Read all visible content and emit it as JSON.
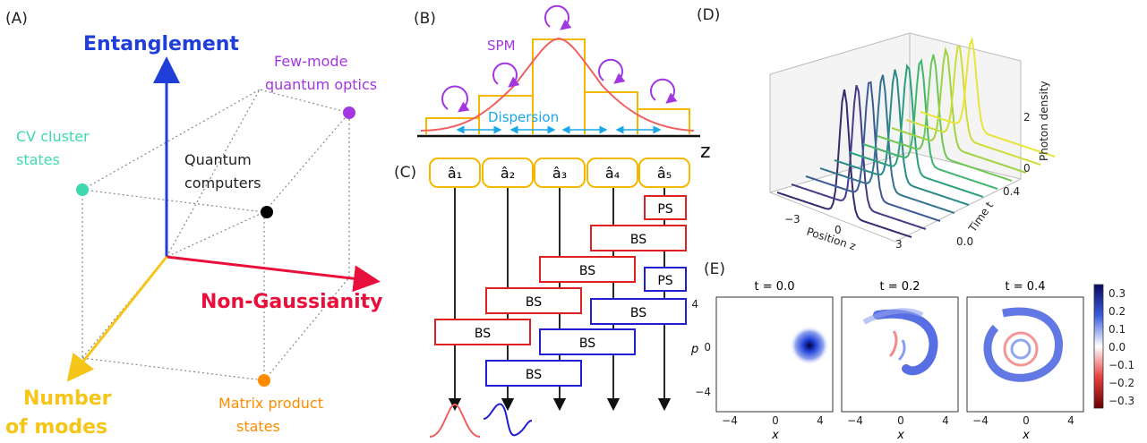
{
  "panels": {
    "A": "(A)",
    "B": "(B)",
    "C": "(C)",
    "D": "(D)",
    "E": "(E)"
  },
  "cube": {
    "entanglement": "Entanglement",
    "non_gaussianity": "Non-Gaussianity",
    "number_of_modes_1": "Number",
    "number_of_modes_2": "of modes",
    "few_mode_1": "Few-mode",
    "few_mode_2": "quantum optics",
    "cv_cluster_1": "CV cluster",
    "cv_cluster_2": "states",
    "qc_1": "Quantum",
    "qc_2": "computers",
    "mps_1": "Matrix product",
    "mps_2": "states"
  },
  "panel_b": {
    "spm": "SPM",
    "dispersion": "Dispersion",
    "z": "z"
  },
  "panel_c": {
    "modes": [
      "â₁",
      "â₂",
      "â₃",
      "â₄",
      "â₅"
    ],
    "bs": "BS",
    "ps": "PS"
  },
  "panel_d": {
    "ylabel": "Photon density",
    "xlabel": "Position z",
    "tlabel": "Time t",
    "x_ticks": [
      "−3",
      "0",
      "3"
    ],
    "t_ticks": [
      "0.0",
      "0.4"
    ],
    "z_ticks": [
      "0",
      "2"
    ]
  },
  "panel_e": {
    "titles": [
      "t = 0.0",
      "t = 0.2",
      "t = 0.4"
    ],
    "xlabel": "x",
    "ylabel": "p",
    "x_ticks": [
      "−4",
      "0",
      "4"
    ],
    "y_ticks": [
      "4",
      "0",
      "−4"
    ],
    "cbar_ticks": [
      "0.3",
      "0.2",
      "0.1",
      "0.0",
      "−0.1",
      "−0.2",
      "−0.3"
    ]
  },
  "colors": {
    "blue": "#1f3fd8",
    "red": "#e8103a",
    "yellow": "#f5c518",
    "purple": "#a236e0",
    "teal": "#3ed9b0",
    "orange": "#ff8c00",
    "cyan": "#1aa7e8",
    "bs_red": "#e02020",
    "bs_blue": "#1f1fd0"
  }
}
